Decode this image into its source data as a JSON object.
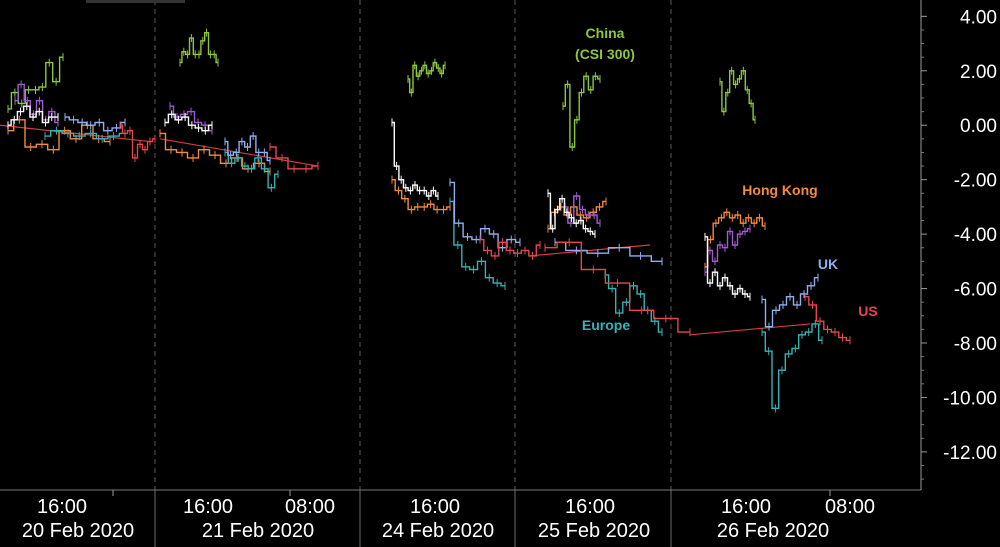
{
  "chart_data": {
    "type": "line",
    "ylim": [
      -13.4,
      4.6
    ],
    "y_ticks": [
      "4.00",
      "2.00",
      "0.00",
      "-2.00",
      "-4.00",
      "-6.00",
      "-8.00",
      "-10.00",
      "-12.00"
    ],
    "y_tick_values": [
      4,
      2,
      0,
      -2,
      -4,
      -6,
      -8,
      -10,
      -12
    ],
    "days": [
      {
        "date": "20 Feb 2020",
        "times": [
          "16:00"
        ]
      },
      {
        "date": "21 Feb 2020",
        "times": [
          "16:00",
          "08:00"
        ]
      },
      {
        "date": "24 Feb 2020",
        "times": [
          "16:00"
        ]
      },
      {
        "date": "25 Feb 2020",
        "times": [
          "16:00"
        ]
      },
      {
        "date": "26 Feb 2020",
        "times": [
          "16:00",
          "08:00"
        ]
      }
    ],
    "annotations": [
      {
        "text": "China",
        "color": "#8dc63f"
      },
      {
        "text": "(CSI  300)",
        "color": "#8dc63f"
      },
      {
        "text": "Hong Kong",
        "color": "#f58a3c"
      },
      {
        "text": "UK",
        "color": "#8fb0ef"
      },
      {
        "text": "US",
        "color": "#e2474f"
      },
      {
        "text": "Europe",
        "color": "#38b1b4"
      }
    ],
    "series": [
      {
        "color": "#8dc63f",
        "segments": [
          [
            0.6,
            1.2,
            0.8,
            1.3,
            1.3,
            1.4,
            2.3,
            1.6,
            2.5
          ],
          [
            2.3,
            2.7,
            2.6,
            3.2,
            2.6,
            2.6,
            3.1,
            3.4,
            2.6,
            2.6,
            2.3
          ],
          [
            1.7,
            1.2,
            2.2,
            1.8,
            2.0,
            2.2,
            1.9,
            2.0,
            2.3,
            2.1,
            1.9,
            2.2
          ],
          [
            0.7,
            1.5,
            -0.8,
            0.2,
            1.2,
            1.8,
            1.3,
            1.8,
            1.7
          ],
          [
            1.6,
            0.5,
            1.2,
            2.0,
            1.5,
            1.7,
            2.0,
            1.3,
            0.8,
            0.2
          ]
        ]
      },
      {
        "color": "#f58a3c",
        "segments": [
          [
            -0.2,
            0.2,
            -0.8,
            -0.7,
            -0.9,
            -0.2,
            -0.5,
            0.0,
            -0.5,
            -0.6
          ],
          [
            -0.3,
            -0.9,
            -1.0,
            -1.2,
            -0.9,
            -1.1,
            -1.4,
            -1.2,
            -1.6,
            -1.4,
            -1.7
          ],
          [
            -2.0,
            -2.4,
            -2.7,
            -3.1,
            -3.0,
            -3.0,
            -2.9,
            -3.1,
            -3.1,
            -3.0
          ],
          [
            -3.8,
            -3.2,
            -3.0,
            -3.3,
            -3.0,
            -3.3,
            -3.4,
            -3.2,
            -3.0,
            -2.8
          ],
          [
            -5.2,
            -4.2,
            -3.6,
            -3.4,
            -3.2,
            -3.4,
            -3.3,
            -3.6,
            -3.4,
            -3.6,
            -3.4,
            -3.7
          ]
        ]
      },
      {
        "color": "#a05bd0",
        "segments": [
          [
            0.9,
            1.5,
            0.9,
            0.4,
            0.9,
            0.2,
            0.5,
            0.1
          ],
          [
            0.7,
            0.3,
            0.4,
            0.5,
            0.1,
            0.0,
            -0.2
          ],
          [
            -3.0,
            -3.6,
            -2.6,
            -3.1,
            -3.3,
            -3.3,
            -3.6
          ],
          [
            -5.4,
            -4.6,
            -5.0,
            -4.4,
            -4.5,
            -3.9,
            -4.4,
            -4.0,
            -3.9,
            -3.8
          ]
        ]
      },
      {
        "color": "#ffffff",
        "segments": [
          [
            0.0,
            0.2,
            0.5,
            0.7,
            0.3,
            0.5,
            0.1,
            0.3,
            0.3
          ],
          [
            0.1,
            0.4,
            0.2,
            0.3,
            0.0,
            -0.1,
            -0.2,
            0.0
          ],
          [
            0.1,
            -1.5,
            -2.0,
            -2.3,
            -2.4,
            -2.2,
            -2.4,
            -2.4,
            -2.6,
            -2.4,
            -2.6
          ],
          [
            -2.5,
            -3.8,
            -3.1,
            -2.7,
            -3.2,
            -3.4,
            -3.6,
            -3.5,
            -3.8,
            -3.9,
            -4.0
          ],
          [
            -4.1,
            -5.8,
            -5.4,
            -5.9,
            -5.6,
            -5.9,
            -6.2,
            -6.0,
            -6.2,
            -6.3
          ]
        ]
      },
      {
        "color": "#38b1b4",
        "segments": [
          [
            -0.4,
            -0.2,
            -0.3,
            -0.4,
            -0.3,
            -0.5,
            -0.4,
            -0.3
          ],
          [
            -1.0,
            -1.4,
            -1.2,
            -1.5,
            -1.6,
            -1.2,
            -1.6,
            -2.3,
            -1.8
          ],
          [
            -2.8,
            -4.4,
            -5.2,
            -5.3,
            -5.0,
            -5.6,
            -5.8,
            -5.9
          ],
          [
            -5.5,
            -6.0,
            -6.9,
            -6.5,
            -5.9,
            -6.2,
            -6.8,
            -7.2,
            -7.6
          ],
          [
            -7.6,
            -8.3,
            -10.4,
            -9.0,
            -8.4,
            -8.2,
            -7.7,
            -7.6,
            -7.3,
            -7.9
          ]
        ]
      },
      {
        "color": "#8fb0ef",
        "segments": [
          [
            0.3,
            0.2,
            0.1,
            0.0,
            0.1,
            -0.2,
            -0.1,
            0.1
          ],
          [
            -0.6,
            -1.1,
            -1.0,
            -0.6,
            -0.8,
            -0.4,
            -1.0,
            -1.0,
            -1.3
          ],
          [
            -2.1,
            -3.6,
            -4.1,
            -4.2,
            -3.8,
            -4.0,
            -4.5,
            -4.2,
            -4.3
          ],
          [
            -4.3,
            -4.6,
            -4.7,
            -4.5,
            -4.8,
            -5.0
          ],
          [
            -6.4,
            -7.4,
            -6.8,
            -6.6,
            -6.3,
            -6.6,
            -6.2,
            -5.9,
            -5.6
          ]
        ]
      },
      {
        "color": "#e2474f",
        "segments": [
          [
            0.0,
            -0.3,
            -0.2,
            -1.2,
            -0.7,
            -0.9,
            -0.6,
            -0.5
          ],
          [
            -0.8,
            -1.2,
            -1.6,
            -1.6,
            -1.5
          ],
          [
            -4.2,
            -4.6,
            -4.8,
            -4.3,
            -4.6,
            -4.7,
            -4.6,
            -4.8,
            -4.4
          ],
          [
            -4.5,
            -4.3,
            -5.3,
            -5.8,
            -6.8,
            -7.1,
            -7.6
          ],
          [
            -6.3,
            -6.6,
            -7.2,
            -7.5,
            -7.6,
            -7.8,
            -7.9
          ]
        ]
      }
    ]
  }
}
